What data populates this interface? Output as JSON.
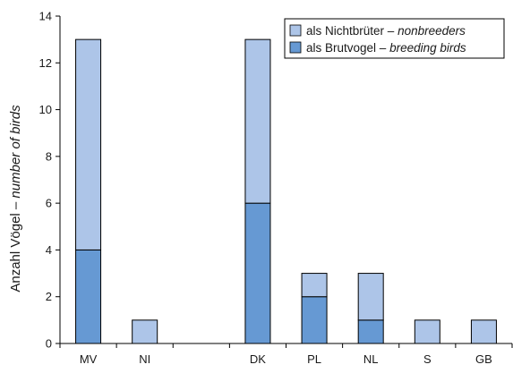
{
  "chart_data": {
    "type": "bar",
    "stacked": true,
    "categories": [
      "MV",
      "NI",
      "",
      "DK",
      "PL",
      "NL",
      "S",
      "GB"
    ],
    "series": [
      {
        "name": "als Brutvogel",
        "name_translation": "breeding birds",
        "color": "#6699d3",
        "values": [
          4,
          0,
          0,
          6,
          2,
          1,
          0,
          0
        ]
      },
      {
        "name": "als Nichtbrüter",
        "name_translation": "nonbreeders",
        "color": "#adc5e8",
        "values": [
          9,
          1,
          0,
          7,
          1,
          2,
          1,
          1
        ]
      }
    ],
    "ylabel": "Anzahl Vögel",
    "ylabel_translation": "number of birds",
    "ylim": [
      0,
      14
    ],
    "yticks": [
      0,
      2,
      4,
      6,
      8,
      10,
      12,
      14
    ],
    "legend_position": "top-right",
    "grid": false
  }
}
